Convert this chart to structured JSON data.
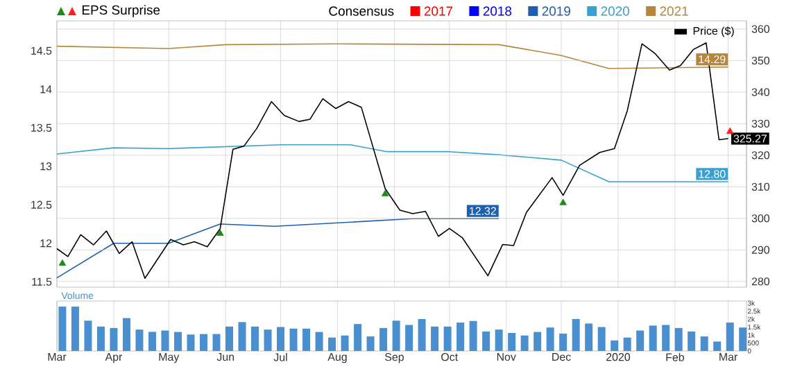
{
  "chart_data": [
    {
      "type": "line",
      "legend_title": "Consensus",
      "legend": "top right",
      "grid": true,
      "tick_labels": "y",
      "xlim": [
        "2019-03-01",
        "2020-03-11"
      ],
      "xticks": [
        {
          "value": "2019-03-01",
          "label": null
        },
        {
          "value": "2019-04-01",
          "label": null
        },
        {
          "value": "2019-05-01",
          "label": null
        },
        {
          "value": "2019-06-01",
          "label": null
        },
        {
          "value": "2019-07-01",
          "label": null
        },
        {
          "value": "2019-08-01",
          "label": null
        },
        {
          "value": "2019-09-01",
          "label": null
        },
        {
          "value": "2019-10-01",
          "label": null
        },
        {
          "value": "2019-11-01",
          "label": null
        },
        {
          "value": "2019-12-01",
          "label": null
        },
        {
          "value": "2020-01-01",
          "label": null
        },
        {
          "value": "2020-02-01",
          "label": null
        },
        {
          "value": "2020-03-01",
          "label": null
        }
      ],
      "ylim": [
        11.43,
        14.89
      ],
      "yticks": [
        11.5,
        12,
        12.5,
        13,
        13.5,
        14,
        14.5
      ],
      "y2lim": [
        278.2,
        362.6
      ],
      "y2ticks": [
        280,
        290,
        300,
        310,
        320,
        330,
        340,
        350,
        360
      ],
      "series": [
        {
          "name": "2017",
          "color": "#ff0000"
        },
        {
          "name": "2018",
          "color": "#0000ff"
        },
        {
          "name": "2019",
          "color": "#1f5fb0",
          "x": [
            "2019-03-01",
            "2019-04-01",
            "2019-05-01",
            "2019-05-29",
            "2019-06-28",
            "2019-09-11",
            "2019-10-28"
          ],
          "values": [
            11.55,
            12.0,
            12.0,
            12.25,
            12.22,
            12.32,
            12.32
          ],
          "value_labels": [
            null,
            null,
            null,
            null,
            null,
            null,
            "12.32"
          ]
        },
        {
          "name": "2020",
          "color": "#3aa0d0",
          "x": [
            "2019-03-01",
            "2019-04-01",
            "2019-05-01",
            "2019-07-01",
            "2019-08-08",
            "2019-08-28",
            "2019-10-01",
            "2019-10-28",
            "2019-12-01",
            "2019-12-27",
            "2020-03-01"
          ],
          "values": [
            13.16,
            13.24,
            13.23,
            13.28,
            13.28,
            13.19,
            13.19,
            13.15,
            13.08,
            12.8,
            12.8
          ],
          "value_labels": [
            null,
            null,
            null,
            null,
            null,
            null,
            null,
            null,
            null,
            null,
            "12.80"
          ]
        },
        {
          "name": "2021",
          "color": "#b8863b",
          "x": [
            "2019-03-01",
            "2019-05-01",
            "2019-06-01",
            "2019-08-01",
            "2019-10-28",
            "2019-12-01",
            "2019-12-27",
            "2020-03-01"
          ],
          "values": [
            14.56,
            14.53,
            14.58,
            14.59,
            14.58,
            14.44,
            14.27,
            14.29
          ],
          "value_labels": [
            null,
            null,
            null,
            null,
            null,
            null,
            null,
            "14.29"
          ]
        },
        {
          "name": "Price ($)",
          "axis": "y2",
          "color": "#000000",
          "x": [
            "2019-03-01",
            "2019-03-07",
            "2019-03-14",
            "2019-03-21",
            "2019-03-28",
            "2019-04-04",
            "2019-04-11",
            "2019-04-18",
            "2019-05-02",
            "2019-05-09",
            "2019-05-15",
            "2019-05-22",
            "2019-05-29",
            "2019-06-05",
            "2019-06-11",
            "2019-06-18",
            "2019-06-26",
            "2019-07-03",
            "2019-07-11",
            "2019-07-17",
            "2019-07-24",
            "2019-07-31",
            "2019-08-07",
            "2019-08-14",
            "2019-08-27",
            "2019-09-04",
            "2019-09-11",
            "2019-09-18",
            "2019-09-25",
            "2019-10-01",
            "2019-10-08",
            "2019-10-22",
            "2019-10-30",
            "2019-11-05",
            "2019-11-12",
            "2019-11-26",
            "2019-12-02",
            "2019-12-11",
            "2019-12-22",
            "2019-12-30",
            "2020-01-06",
            "2020-01-14",
            "2020-01-21",
            "2020-01-29",
            "2020-02-04",
            "2020-02-11",
            "2020-02-18",
            "2020-02-25",
            "2020-03-01"
          ],
          "values": [
            290.4,
            287.9,
            294.8,
            291.6,
            296.0,
            288.9,
            292.6,
            281.0,
            293.3,
            291.6,
            292.6,
            291.0,
            296.7,
            321.9,
            322.9,
            328.5,
            337.0,
            332.6,
            330.7,
            331.4,
            337.9,
            334.8,
            337.0,
            335.2,
            309.4,
            302.6,
            301.5,
            302.2,
            294.3,
            296.8,
            293.9,
            281.8,
            291.7,
            291.4,
            301.9,
            312.9,
            307.3,
            316.8,
            320.9,
            322.1,
            334.1,
            355.3,
            352.3,
            347.0,
            348.4,
            353.5,
            355.6,
            324.9,
            325.27
          ],
          "value_labels": [
            null,
            null,
            null,
            null,
            null,
            null,
            null,
            null,
            null,
            null,
            null,
            null,
            null,
            null,
            null,
            null,
            null,
            null,
            null,
            null,
            null,
            null,
            null,
            null,
            null,
            null,
            null,
            null,
            null,
            null,
            null,
            null,
            null,
            null,
            null,
            null,
            null,
            null,
            null,
            null,
            null,
            null,
            null,
            null,
            null,
            null,
            null,
            null,
            "325.27"
          ]
        },
        {
          "name": "EPS Surprise",
          "type": "scatter",
          "axis": "y2",
          "marker": "triangle",
          "x": [
            "2019-03-04",
            "2019-05-29",
            "2019-08-27",
            "2019-12-02",
            "2020-03-02"
          ],
          "values": [
            285.7,
            295.2,
            307.7,
            304.9,
            327.5
          ],
          "colors": [
            "#1a8c1a",
            "#1a8c1a",
            "#1a8c1a",
            "#1a8c1a",
            "#ff2020"
          ]
        }
      ]
    },
    {
      "type": "bar",
      "title": "Volume",
      "color": "#4a8fd0",
      "grid": "x",
      "xlim": [
        "2019-03-01",
        "2020-03-11"
      ],
      "xticks": [
        {
          "value": "2019-03-01",
          "label": "Mar"
        },
        {
          "value": "2019-04-01",
          "label": "Apr"
        },
        {
          "value": "2019-05-01",
          "label": "May"
        },
        {
          "value": "2019-06-01",
          "label": "Jun"
        },
        {
          "value": "2019-07-01",
          "label": "Jul"
        },
        {
          "value": "2019-08-01",
          "label": "Aug"
        },
        {
          "value": "2019-09-01",
          "label": "Sep"
        },
        {
          "value": "2019-10-01",
          "label": "Oct"
        },
        {
          "value": "2019-11-01",
          "label": "Nov"
        },
        {
          "value": "2019-12-01",
          "label": "Dec"
        },
        {
          "value": "2020-01-01",
          "label": "2020"
        },
        {
          "value": "2020-02-01",
          "label": "Feb"
        },
        {
          "value": "2020-03-01",
          "label": "Mar"
        }
      ],
      "ylim": [
        0,
        3130
      ],
      "yticks": [
        0,
        500,
        {
          "value": 1000,
          "label": "1k"
        },
        {
          "value": 1500,
          "label": "1.5k"
        },
        {
          "value": 2000,
          "label": "2k"
        },
        {
          "value": 2500,
          "label": "2.5k"
        },
        {
          "value": 3000,
          "label": "3k"
        }
      ],
      "x": [
        "2019-03-04",
        "2019-03-11",
        "2019-03-18",
        "2019-03-25",
        "2019-04-01",
        "2019-04-08",
        "2019-04-15",
        "2019-04-22",
        "2019-04-29",
        "2019-05-06",
        "2019-05-13",
        "2019-05-20",
        "2019-05-27",
        "2019-06-03",
        "2019-06-10",
        "2019-06-17",
        "2019-06-24",
        "2019-07-01",
        "2019-07-08",
        "2019-07-15",
        "2019-07-22",
        "2019-07-29",
        "2019-08-05",
        "2019-08-12",
        "2019-08-19",
        "2019-08-26",
        "2019-09-02",
        "2019-09-09",
        "2019-09-16",
        "2019-09-23",
        "2019-09-30",
        "2019-10-07",
        "2019-10-14",
        "2019-10-21",
        "2019-10-28",
        "2019-11-04",
        "2019-11-11",
        "2019-11-18",
        "2019-11-25",
        "2019-12-02",
        "2019-12-09",
        "2019-12-16",
        "2019-12-23",
        "2019-12-30",
        "2020-01-06",
        "2020-01-13",
        "2020-01-20",
        "2020-01-27",
        "2020-02-03",
        "2020-02-10",
        "2020-02-17",
        "2020-02-24",
        "2020-03-02",
        "2020-03-09"
      ],
      "values": [
        2780,
        2780,
        1900,
        1530,
        1440,
        2060,
        1340,
        1200,
        1280,
        1190,
        1030,
        1060,
        1060,
        1530,
        1810,
        1530,
        1340,
        1500,
        1400,
        1400,
        1190,
        840,
        970,
        1690,
        910,
        1440,
        1900,
        1630,
        2000,
        1530,
        1530,
        1780,
        1880,
        1220,
        1340,
        1130,
        970,
        1190,
        1470,
        1090,
        2000,
        1720,
        1500,
        660,
        840,
        1280,
        1590,
        1630,
        1440,
        1220,
        910,
        590,
        1780,
        1470
      ]
    }
  ]
}
